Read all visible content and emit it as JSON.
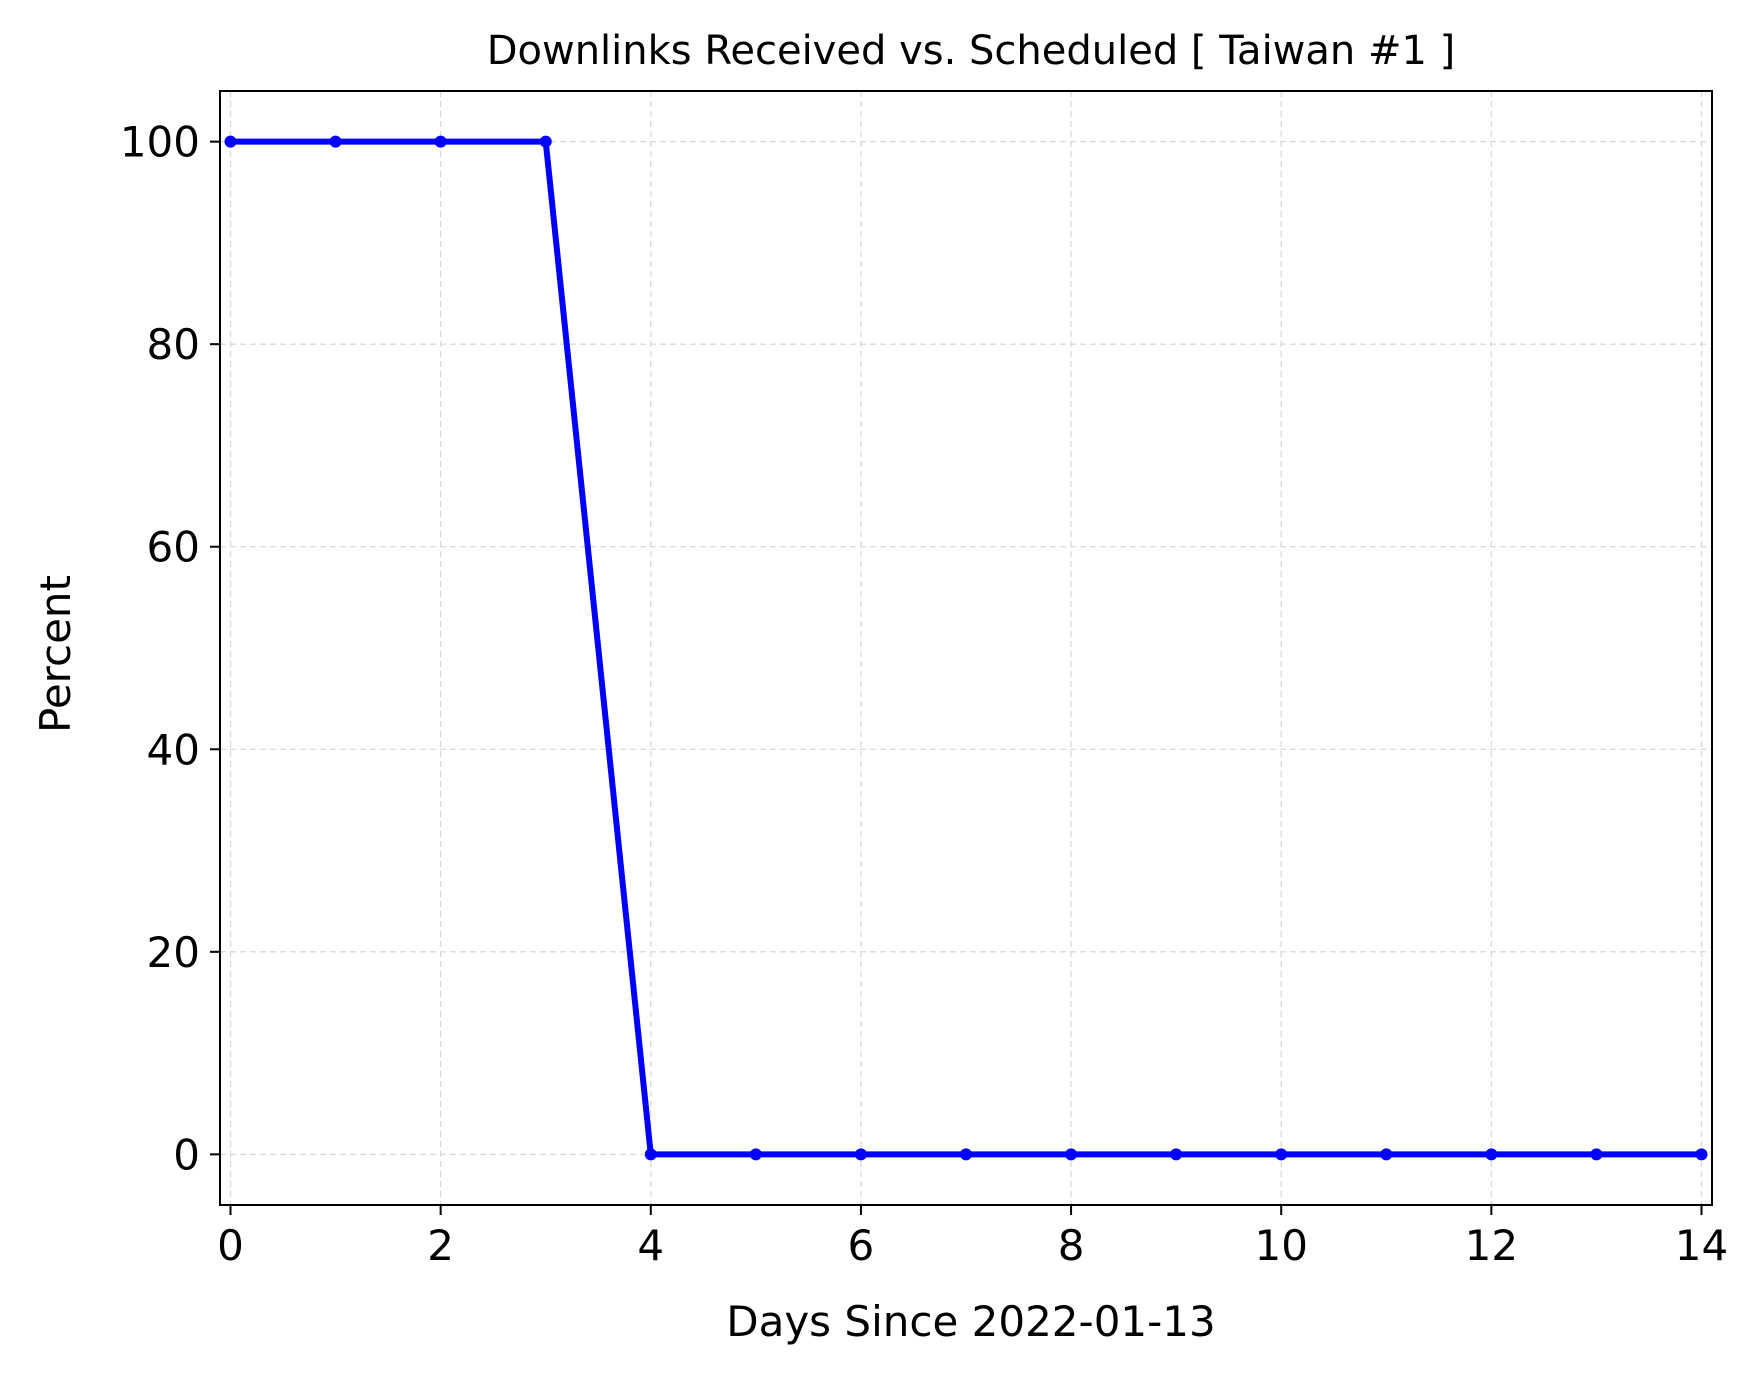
{
  "chart_data": {
    "type": "line",
    "title": "Downlinks Received vs. Scheduled [ Taiwan #1 ]",
    "xlabel": "Days Since 2022-01-13",
    "ylabel": "Percent",
    "xlim": [
      -0.1,
      14.1
    ],
    "ylim": [
      -5,
      105
    ],
    "xticks": [
      0,
      2,
      4,
      6,
      8,
      10,
      12,
      14
    ],
    "yticks": [
      0,
      20,
      40,
      60,
      80,
      100
    ],
    "grid": true,
    "series": [
      {
        "color": "#0000ff",
        "marker": "dot",
        "x": [
          0,
          1,
          2,
          3,
          4,
          5,
          6,
          7,
          8,
          9,
          10,
          11,
          12,
          13,
          14
        ],
        "y": [
          100,
          100,
          100,
          100,
          0,
          0,
          0,
          0,
          0,
          0,
          0,
          0,
          0,
          0,
          0
        ]
      }
    ]
  }
}
